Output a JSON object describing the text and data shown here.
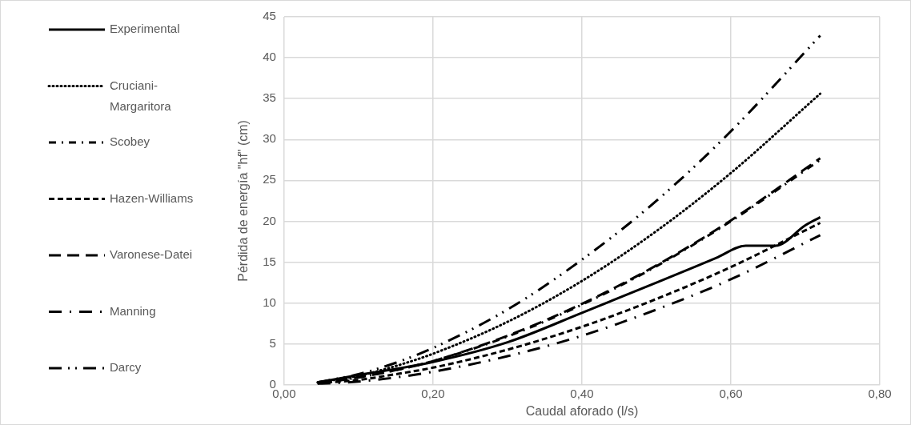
{
  "chart_data": {
    "type": "line",
    "xlabel": "Caudal aforado (l/s)",
    "ylabel": "Pérdida de energía \"hf\" (cm)",
    "xlim": [
      0,
      0.8
    ],
    "xticks": [
      {
        "value": 0,
        "label": "0,00"
      },
      {
        "value": 0.2,
        "label": "0,20"
      },
      {
        "value": 0.4,
        "label": "0,40"
      },
      {
        "value": 0.6,
        "label": "0,60"
      },
      {
        "value": 0.8,
        "label": "0,80"
      }
    ],
    "ylim": [
      0,
      45
    ],
    "yticks": [
      0,
      5,
      10,
      15,
      20,
      25,
      30,
      35,
      40,
      45
    ],
    "grid": true,
    "legend": "left",
    "marker": "none",
    "series": [
      {
        "name": "Experimental",
        "color": "#000000",
        "line_style": "solid",
        "x": [
          0.045,
          0.1,
          0.2,
          0.3,
          0.4,
          0.5,
          0.58,
          0.62,
          0.66,
          0.7,
          0.72
        ],
        "values": [
          0.3,
          1.2,
          2.8,
          5.2,
          8.8,
          12.5,
          15.5,
          17,
          17,
          19.5,
          20.5
        ]
      },
      {
        "name": "Cruciani-Margaritora",
        "color": "#000000",
        "line_style": "dotted",
        "x": [
          0.045,
          0.1,
          0.15,
          0.2,
          0.3,
          0.4,
          0.5,
          0.6,
          0.72
        ],
        "values": [
          0.3,
          1.1,
          2.3,
          3.8,
          7.7,
          12.7,
          18.8,
          25.9,
          35.6
        ]
      },
      {
        "name": "Scobey",
        "color": "#000000",
        "line_style": "dashdot",
        "x": [
          0.045,
          0.1,
          0.15,
          0.2,
          0.3,
          0.4,
          0.5,
          0.6,
          0.72
        ],
        "values": [
          0.2,
          0.9,
          1.8,
          2.9,
          5.9,
          9.8,
          14.5,
          20,
          27.5
        ]
      },
      {
        "name": "Hazen-Williams",
        "color": "#000000",
        "line_style": "dashed",
        "x": [
          0.045,
          0.1,
          0.15,
          0.2,
          0.3,
          0.4,
          0.5,
          0.6,
          0.72
        ],
        "values": [
          0.2,
          0.6,
          1.3,
          2.1,
          4.3,
          7.1,
          10.5,
          14.4,
          19.8
        ]
      },
      {
        "name": "Varonese-Datei",
        "color": "#000000",
        "line_style": "longdash",
        "x": [
          0.045,
          0.1,
          0.15,
          0.2,
          0.3,
          0.4,
          0.5,
          0.6,
          0.72
        ],
        "values": [
          0.2,
          0.9,
          1.8,
          2.9,
          6,
          9.9,
          14.6,
          20.1,
          27.7
        ]
      },
      {
        "name": "Manning",
        "color": "#000000",
        "line_style": "longdashdot",
        "x": [
          0.045,
          0.1,
          0.15,
          0.2,
          0.3,
          0.4,
          0.5,
          0.6,
          0.72
        ],
        "values": [
          0.1,
          0.4,
          0.9,
          1.6,
          3.5,
          6,
          9.2,
          12.9,
          18.3
        ]
      },
      {
        "name": "Darcy",
        "color": "#000000",
        "line_style": "longdashdotdot",
        "x": [
          0.045,
          0.1,
          0.15,
          0.2,
          0.3,
          0.4,
          0.5,
          0.6,
          0.72
        ],
        "values": [
          0.3,
          1.3,
          2.7,
          4.5,
          9.2,
          15.3,
          22.5,
          31,
          42.7
        ]
      }
    ]
  }
}
